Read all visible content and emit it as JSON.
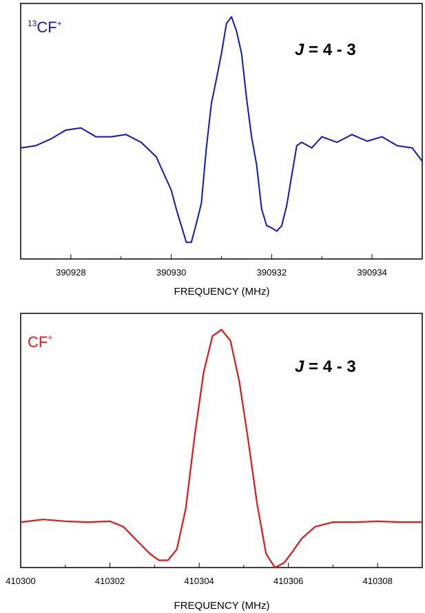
{
  "chart_data": [
    {
      "type": "line",
      "molecule": {
        "superscript_pre": "13",
        "base": "CF",
        "superscript_post": "+"
      },
      "transition": {
        "italic": "J",
        "rest": " = 4 - 3"
      },
      "xlabel": "FREQUENCY (MHz)",
      "ylabel": "",
      "xlim": [
        390927,
        390935
      ],
      "ylim": [
        -1.0,
        1.3
      ],
      "x_ticks": [
        "390928",
        "390930",
        "390932",
        "390934"
      ],
      "x_tick_values": [
        390928,
        390930,
        390932,
        390934
      ],
      "color": "#1010dd",
      "grid": false,
      "series": [
        {
          "x": [
            390927.0,
            390927.3,
            390927.6,
            390927.9,
            390928.2,
            390928.5,
            390928.8,
            390929.1,
            390929.4,
            390929.7,
            390930.0,
            390930.1,
            390930.2,
            390930.3,
            390930.4,
            390930.5,
            390930.6,
            390930.7,
            390930.8,
            390930.9,
            390931.0,
            390931.1,
            390931.2,
            390931.3,
            390931.4,
            390931.5,
            390931.6,
            390931.7,
            390931.8,
            390931.9,
            390932.0,
            390932.1,
            390932.2,
            390932.3,
            390932.4,
            390932.5,
            390932.6,
            390932.8,
            390933.0,
            390933.3,
            390933.6,
            390933.9,
            390934.2,
            390934.5,
            390934.8,
            390935.0
          ],
          "y": [
            0.0,
            0.02,
            0.08,
            0.16,
            0.18,
            0.1,
            0.1,
            0.12,
            0.05,
            -0.08,
            -0.38,
            -0.55,
            -0.7,
            -0.85,
            -0.85,
            -0.68,
            -0.5,
            0.0,
            0.4,
            0.62,
            0.85,
            1.12,
            1.18,
            1.05,
            0.85,
            0.45,
            0.1,
            -0.15,
            -0.55,
            -0.7,
            -0.72,
            -0.75,
            -0.7,
            -0.52,
            -0.25,
            0.02,
            0.05,
            0.0,
            0.1,
            0.05,
            0.12,
            0.06,
            0.1,
            0.02,
            0.0,
            -0.12
          ]
        }
      ]
    },
    {
      "type": "line",
      "molecule": {
        "superscript_pre": "",
        "base": "CF",
        "superscript_post": "+"
      },
      "transition": {
        "italic": "J",
        "rest": " = 4 - 3"
      },
      "xlabel": "FREQUENCY (MHz)",
      "ylabel": "",
      "xlim": [
        410300,
        410309
      ],
      "ylim": [
        -0.5,
        2.3
      ],
      "x_ticks": [
        "410300",
        "410302",
        "410304",
        "410306",
        "410308"
      ],
      "x_tick_values": [
        410300,
        410302,
        410304,
        410306,
        410308
      ],
      "color": "#ee1111",
      "grid": false,
      "series": [
        {
          "x": [
            410300.0,
            410300.5,
            410301.0,
            410301.5,
            410302.0,
            410302.3,
            410302.6,
            410302.9,
            410303.1,
            410303.3,
            410303.5,
            410303.7,
            410303.9,
            410304.1,
            410304.3,
            410304.5,
            410304.7,
            410304.9,
            410305.1,
            410305.3,
            410305.5,
            410305.7,
            410305.9,
            410306.1,
            410306.3,
            410306.6,
            410307.0,
            410307.5,
            410308.0,
            410308.5,
            410309.0
          ],
          "y": [
            0.0,
            0.03,
            0.01,
            0.0,
            0.01,
            -0.05,
            -0.2,
            -0.35,
            -0.42,
            -0.42,
            -0.3,
            0.15,
            0.95,
            1.65,
            2.05,
            2.12,
            2.0,
            1.55,
            0.9,
            0.2,
            -0.35,
            -0.5,
            -0.45,
            -0.32,
            -0.18,
            -0.05,
            0.0,
            0.0,
            0.01,
            0.0,
            0.0
          ]
        }
      ]
    }
  ]
}
